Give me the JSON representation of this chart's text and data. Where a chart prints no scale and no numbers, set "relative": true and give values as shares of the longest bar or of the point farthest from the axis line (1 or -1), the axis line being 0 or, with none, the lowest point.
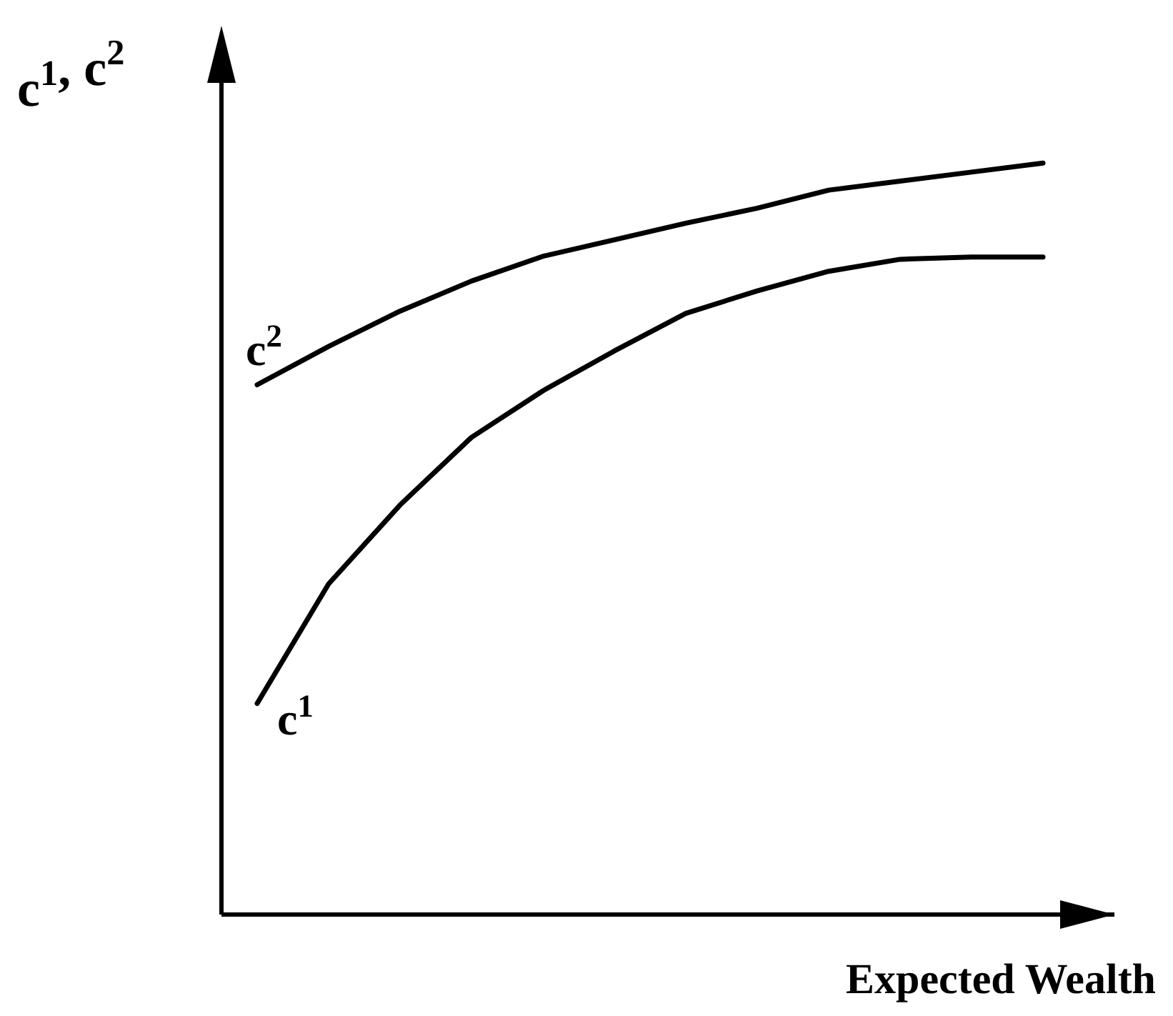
{
  "chart_data": {
    "type": "line",
    "relative": true,
    "ylabel": "c$^{1}$, c$^{2}$",
    "xlabel": "Expected Wealth",
    "categories": [
      null,
      null,
      null,
      null,
      null,
      null,
      null,
      null,
      null,
      null,
      null,
      null
    ],
    "series": [
      {
        "name": "c$^{1}$",
        "color": "#000000",
        "values": [
          0.281,
          0.44,
          0.545,
          0.635,
          0.697,
          0.75,
          0.8,
          0.83,
          0.856,
          0.872,
          0.875,
          0.875
        ]
      },
      {
        "name": "c$^{2}$",
        "color": "#000000",
        "values": [
          0.705,
          0.756,
          0.803,
          0.843,
          0.876,
          0.898,
          0.92,
          0.94,
          0.964,
          0.976,
          0.988,
          1
        ]
      }
    ]
  }
}
